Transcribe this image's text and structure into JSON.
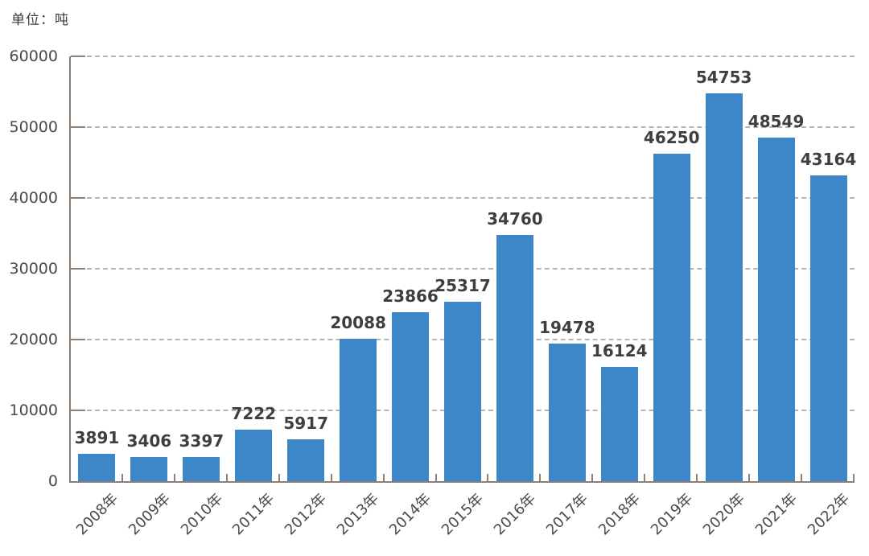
{
  "chart_data": {
    "type": "bar",
    "title": "",
    "unit_label": "单位：吨",
    "categories": [
      "2008年",
      "2009年",
      "2010年",
      "2011年",
      "2012年",
      "2013年",
      "2014年",
      "2015年",
      "2016年",
      "2017年",
      "2018年",
      "2019年",
      "2020年",
      "2021年",
      "2022年"
    ],
    "values": [
      3891,
      3406,
      3397,
      7222,
      5917,
      20088,
      23866,
      25317,
      34760,
      19478,
      16124,
      46250,
      54753,
      48549,
      43164
    ],
    "xlabel": "",
    "ylabel": "",
    "ylim": [
      0,
      60000
    ],
    "yticks": [
      0,
      10000,
      20000,
      30000,
      40000,
      50000,
      60000
    ],
    "grid": "horizontal-dashed",
    "legend": "none",
    "bar_labels_shown": true,
    "colors": {
      "bar": "#3d87c8",
      "axis": "#8e7e76",
      "gridline": "#a8a8a8",
      "data_label": "#3f3f3f",
      "tick_label": "#4a4a4a"
    }
  }
}
